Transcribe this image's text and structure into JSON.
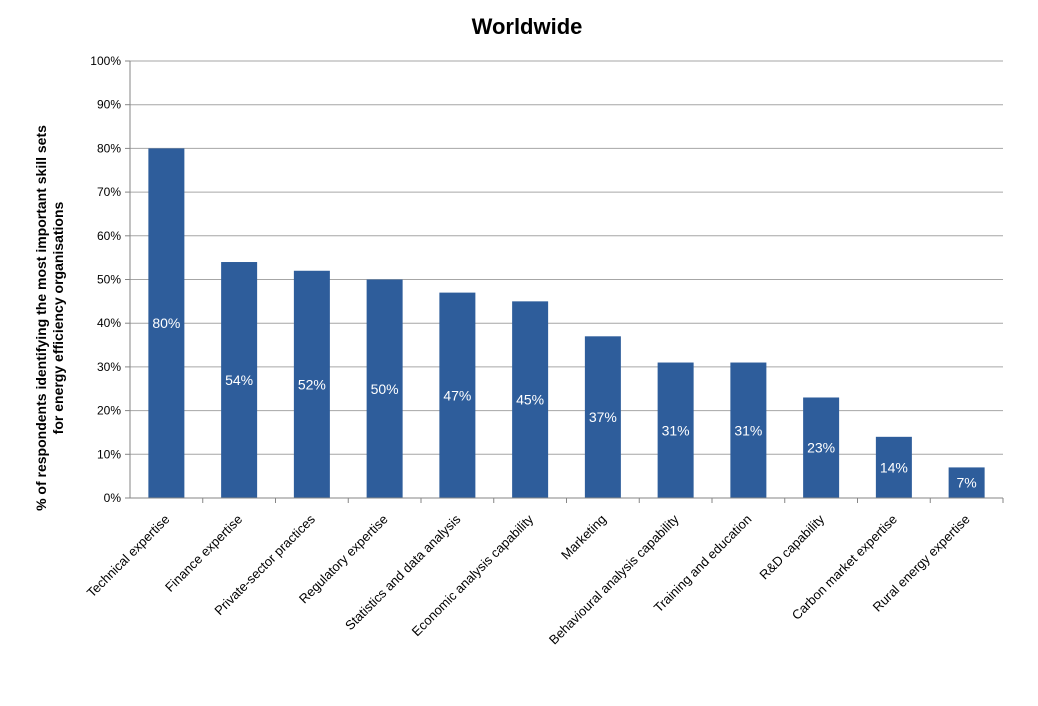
{
  "chart_data": {
    "type": "bar",
    "title": "Worldwide",
    "xlabel": "",
    "ylabel": "% of respondents identifying the most important skill sets for energy efficiency organisations",
    "ylabel_lines": [
      "% of respondents identifying the most important skill sets",
      "for energy efficiency organisations"
    ],
    "categories": [
      "Technical expertise",
      "Finance expertise",
      "Private-sector practices",
      "Regulatory expertise",
      "Statistics and data analysis",
      "Economic analysis capability",
      "Marketing",
      "Behavioural analysis capability",
      "Training and education",
      "R&D capability",
      "Carbon market expertise",
      "Rural energy expertise"
    ],
    "values": [
      80,
      54,
      52,
      50,
      47,
      45,
      37,
      31,
      31,
      23,
      14,
      7
    ],
    "data_labels": [
      "80%",
      "54%",
      "52%",
      "50%",
      "47%",
      "45%",
      "37%",
      "31%",
      "31%",
      "23%",
      "14%",
      "7%"
    ],
    "ylim": [
      0,
      100
    ],
    "y_ticks": [
      "0%",
      "10%",
      "20%",
      "30%",
      "40%",
      "50%",
      "60%",
      "70%",
      "80%",
      "90%",
      "100%"
    ],
    "grid": true,
    "legend": "none",
    "bar_color": "#2E5D9B",
    "grid_color": "#A6A6A6",
    "axis_color": "#868686"
  }
}
